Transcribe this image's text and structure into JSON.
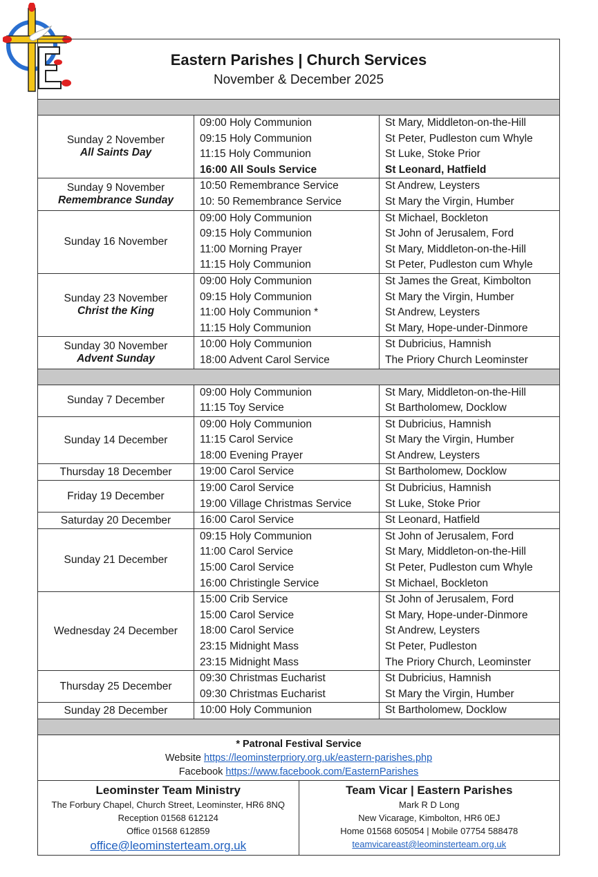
{
  "header": {
    "title": "Eastern Parishes | Church Services",
    "subtitle": "November & December 2025"
  },
  "logo": {
    "icon": "cross-dove-e-logo",
    "colors": {
      "cross": "#f2c418",
      "ring": "#2a6fd0",
      "petals": "#e02020"
    }
  },
  "november": [
    {
      "date": "Sunday 2 November",
      "note": "All Saints Day",
      "services": [
        {
          "service": "09:00 Holy Communion",
          "place": "St Mary, Middleton-on-the-Hill"
        },
        {
          "service": "09:15 Holy Communion",
          "place": "St Peter, Pudleston cum Whyle"
        },
        {
          "service": "11:15 Holy Communion",
          "place": "St Luke, Stoke Prior"
        },
        {
          "service": "16:00 All Souls Service",
          "place": "St Leonard, Hatfield",
          "bold": true
        }
      ]
    },
    {
      "date": "Sunday 9 November",
      "note": "Remembrance Sunday",
      "services": [
        {
          "service": "10:50 Remembrance Service",
          "place": "St Andrew, Leysters"
        },
        {
          "service": "10: 50 Remembrance Service",
          "place": "St Mary the Virgin, Humber"
        }
      ]
    },
    {
      "date": "Sunday 16 November",
      "note": "",
      "services": [
        {
          "service": "09:00 Holy Communion",
          "place": "St Michael, Bockleton"
        },
        {
          "service": "09:15 Holy Communion",
          "place": "St John of Jerusalem, Ford"
        },
        {
          "service": "11:00 Morning Prayer",
          "place": "St Mary, Middleton-on-the-Hill"
        },
        {
          "service": "11:15 Holy Communion",
          "place": "St Peter, Pudleston cum Whyle"
        }
      ]
    },
    {
      "date": "Sunday 23 November",
      "note": "Christ the King",
      "services": [
        {
          "service": "09:00 Holy Communion",
          "place": "St James the Great, Kimbolton"
        },
        {
          "service": "09:15 Holy Communion",
          "place": "St Mary the Virgin, Humber"
        },
        {
          "service": "11:00 Holy Communion *",
          "place": "St Andrew, Leysters"
        },
        {
          "service": "11:15 Holy Communion",
          "place": "St Mary, Hope-under-Dinmore"
        }
      ]
    },
    {
      "date": "Sunday 30 November",
      "note": "Advent Sunday",
      "services": [
        {
          "service": "10:00 Holy Communion",
          "place": "St Dubricius, Hamnish"
        },
        {
          "service": "18:00 Advent Carol Service",
          "place": "The Priory Church Leominster"
        }
      ]
    }
  ],
  "december": [
    {
      "date": "Sunday 7 December",
      "note": "",
      "services": [
        {
          "service": "09:00 Holy Communion",
          "place": "St Mary, Middleton-on-the-Hill"
        },
        {
          "service": "11:15 Toy Service",
          "place": "St Bartholomew, Docklow"
        }
      ]
    },
    {
      "date": "Sunday 14 December",
      "note": "",
      "services": [
        {
          "service": "09:00 Holy Communion",
          "place": "St Dubricius, Hamnish"
        },
        {
          "service": "11:15 Carol Service",
          "place": "St Mary the Virgin, Humber"
        },
        {
          "service": "18:00 Evening Prayer",
          "place": "St Andrew, Leysters"
        }
      ]
    },
    {
      "date": "Thursday 18 December",
      "note": "",
      "services": [
        {
          "service": "19:00 Carol Service",
          "place": "St Bartholomew, Docklow"
        }
      ]
    },
    {
      "date": "Friday 19 December",
      "note": "",
      "services": [
        {
          "service": "19:00 Carol Service",
          "place": "St Dubricius, Hamnish"
        },
        {
          "service": "19:00 Village Christmas Service",
          "place": "St Luke, Stoke Prior"
        }
      ]
    },
    {
      "date": "Saturday 20 December",
      "note": "",
      "services": [
        {
          "service": "16:00 Carol Service",
          "place": "St Leonard, Hatfield"
        }
      ]
    },
    {
      "date": "Sunday 21 December",
      "note": "",
      "services": [
        {
          "service": "09:15 Holy Communion",
          "place": "St John of Jerusalem, Ford"
        },
        {
          "service": "11:00 Carol Service",
          "place": "St Mary, Middleton-on-the-Hill"
        },
        {
          "service": "15:00 Carol Service",
          "place": "St Peter, Pudleston cum Whyle"
        },
        {
          "service": "16:00 Christingle Service",
          "place": "St Michael, Bockleton"
        }
      ]
    },
    {
      "date": "Wednesday 24 December",
      "note": "",
      "services": [
        {
          "service": "15:00 Crib Service",
          "place": "St John of Jerusalem, Ford"
        },
        {
          "service": "15:00 Carol Service",
          "place": "St Mary, Hope-under-Dinmore"
        },
        {
          "service": "18:00 Carol Service",
          "place": "St Andrew, Leysters"
        },
        {
          "service": "23:15 Midnight Mass",
          "place": "St Peter, Pudleston"
        },
        {
          "service": "23:15 Midnight Mass",
          "place": "The Priory Church, Leominster"
        }
      ]
    },
    {
      "date": "Thursday 25 December",
      "note": "",
      "services": [
        {
          "service": "09:30 Christmas Eucharist",
          "place": "St Dubricius, Hamnish"
        },
        {
          "service": "09:30 Christmas Eucharist",
          "place": "St Mary the Virgin, Humber"
        }
      ]
    },
    {
      "date": "Sunday 28 December",
      "note": "",
      "services": [
        {
          "service": "10:00 Holy Communion",
          "place": "St Bartholomew, Docklow"
        }
      ]
    }
  ],
  "footer": {
    "patronal": "* Patronal Festival Service",
    "website_label": "Website",
    "website_url": "https://leominsterpriory.org.uk/eastern-parishes.php",
    "facebook_label": "Facebook",
    "facebook_url": "https://www.facebook.com/EasternParishes",
    "left": {
      "title": "Leominster Team Ministry",
      "address": "The Forbury Chapel, Church Street, Leominster, HR6 8NQ",
      "reception": "Reception 01568 612124",
      "office": "Office 01568 612859",
      "email": "office@leominsterteam.org.uk"
    },
    "right": {
      "title": "Team Vicar | Eastern Parishes",
      "name": "Mark R D Long",
      "address": "New Vicarage, Kimbolton, HR6 0EJ",
      "phones": "Home 01568 605054 | Mobile 07754 588478",
      "email": "teamvicareast@leominsterteam.org.uk"
    }
  }
}
